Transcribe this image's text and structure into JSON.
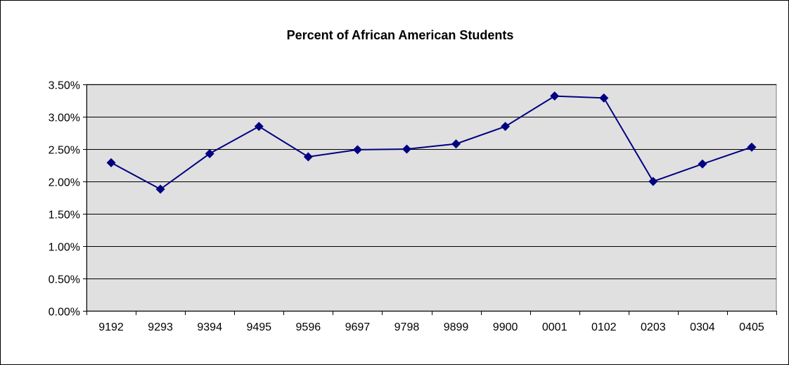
{
  "chart_data": {
    "type": "line",
    "title": "Percent of African American Students",
    "xlabel": "",
    "ylabel": "",
    "categories": [
      "9192",
      "9293",
      "9394",
      "9495",
      "9596",
      "9697",
      "9798",
      "9899",
      "9900",
      "0001",
      "0102",
      "0203",
      "0304",
      "0405"
    ],
    "series": [
      {
        "values": [
          0.0229,
          0.0188,
          0.0243,
          0.0285,
          0.0238,
          0.0249,
          0.025,
          0.0258,
          0.0285,
          0.0332,
          0.0329,
          0.02,
          0.0227,
          0.0253
        ]
      }
    ],
    "ylim": [
      0,
      0.035
    ],
    "yticks": [
      0,
      0.005,
      0.01,
      0.015,
      0.02,
      0.025,
      0.03,
      0.035
    ],
    "ytick_labels": [
      "0.00%",
      "0.50%",
      "1.00%",
      "1.50%",
      "2.00%",
      "2.50%",
      "3.00%",
      "3.50%"
    ],
    "grid": true,
    "legend": "none",
    "colors": {
      "line": "#000080",
      "marker": "#000080",
      "plot_background": "#e0e0e0",
      "gridline": "#000000"
    }
  }
}
